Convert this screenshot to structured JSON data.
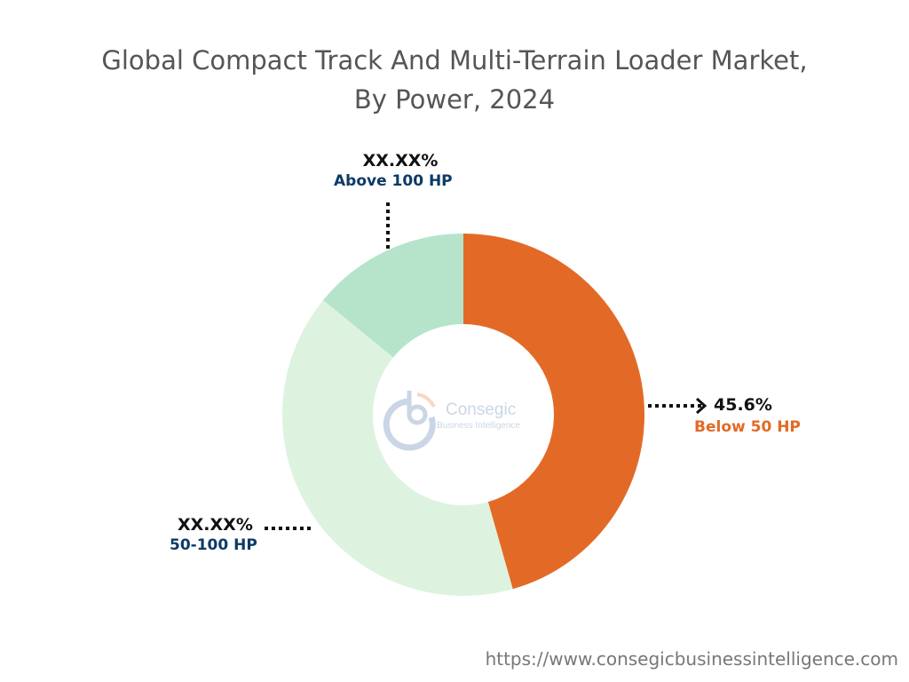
{
  "chart_data": {
    "type": "pie",
    "donut": true,
    "title": "Global Compact Track And Multi-Terrain Loader Market,",
    "subtitle": "By Power, 2024",
    "slices": [
      {
        "label": "Below 50 HP",
        "value": 45.6,
        "display": "45.6%",
        "color": "#E36A26",
        "label_color": "#E36A26"
      },
      {
        "label": "50-100 HP",
        "value": 40.3,
        "display": "XX.XX%",
        "color": "#DDF3E0",
        "label_color": "#0D3A66"
      },
      {
        "label": "Above 100 HP",
        "value": 14.1,
        "display": "XX.XX%",
        "color": "#B5E4CB",
        "label_color": "#0D3A66"
      }
    ]
  },
  "logo": {
    "name": "Consegic",
    "tagline": "Business Intelligence"
  },
  "footer": {
    "url": "https://www.consegicbusinessintelligence.com"
  }
}
